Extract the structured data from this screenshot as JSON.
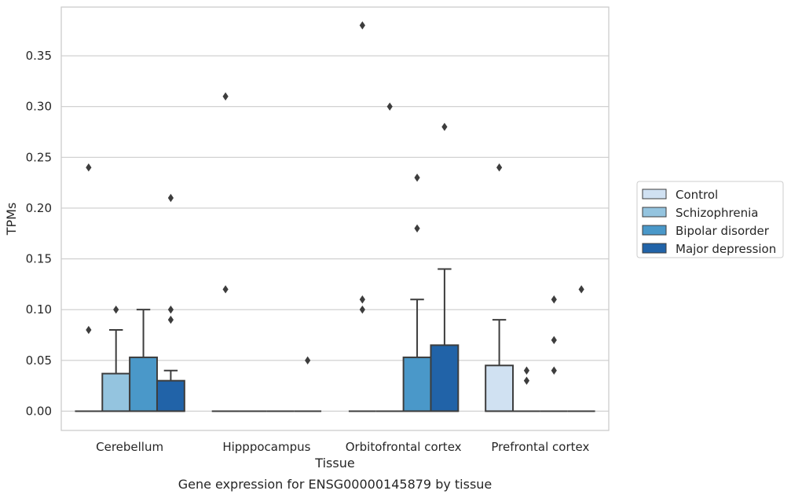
{
  "chart_data": {
    "type": "boxplot",
    "xlabel": "Tissue",
    "ylabel": "TPMs",
    "caption": "Gene expression for ENSG00000145879 by tissue",
    "ylim": [
      -0.019,
      0.398
    ],
    "yticks": [
      0.0,
      0.05,
      0.1,
      0.15,
      0.2,
      0.25,
      0.3,
      0.35
    ],
    "ytick_labels": [
      "0.00",
      "0.05",
      "0.10",
      "0.15",
      "0.20",
      "0.25",
      "0.30",
      "0.35"
    ],
    "grid": "horizontal",
    "legend_placement": "right",
    "categories": [
      "Cerebellum",
      "Hipppocampus",
      "Orbitofrontal cortex",
      "Prefrontal cortex"
    ],
    "series": [
      {
        "name": "Control",
        "color": "#d0e1f2",
        "boxes": [
          {
            "q1": 0,
            "median": 0,
            "q3": 0,
            "whisker_low": 0,
            "whisker_high": 0,
            "outliers": [
              0.08,
              0.24
            ]
          },
          {
            "q1": 0,
            "median": 0,
            "q3": 0,
            "whisker_low": 0,
            "whisker_high": 0,
            "outliers": [
              0.12,
              0.31
            ]
          },
          {
            "q1": 0,
            "median": 0,
            "q3": 0,
            "whisker_low": 0,
            "whisker_high": 0,
            "outliers": [
              0.1,
              0.11,
              0.38
            ]
          },
          {
            "q1": 0,
            "median": 0,
            "q3": 0.045,
            "whisker_low": 0,
            "whisker_high": 0.09,
            "outliers": [
              0.24
            ]
          }
        ]
      },
      {
        "name": "Schizophrenia",
        "color": "#94c4df",
        "boxes": [
          {
            "q1": 0,
            "median": 0,
            "q3": 0.037,
            "whisker_low": 0,
            "whisker_high": 0.08,
            "outliers": [
              0.1
            ]
          },
          {
            "q1": 0,
            "median": 0,
            "q3": 0,
            "whisker_low": 0,
            "whisker_high": 0,
            "outliers": []
          },
          {
            "q1": 0,
            "median": 0,
            "q3": 0,
            "whisker_low": 0,
            "whisker_high": 0,
            "outliers": [
              0.3
            ]
          },
          {
            "q1": 0,
            "median": 0,
            "q3": 0,
            "whisker_low": 0,
            "whisker_high": 0,
            "outliers": [
              0.03,
              0.04
            ]
          }
        ]
      },
      {
        "name": "Bipolar disorder",
        "color": "#4a98c9",
        "boxes": [
          {
            "q1": 0,
            "median": 0,
            "q3": 0.053,
            "whisker_low": 0,
            "whisker_high": 0.1,
            "outliers": []
          },
          {
            "q1": 0,
            "median": 0,
            "q3": 0,
            "whisker_low": 0,
            "whisker_high": 0,
            "outliers": []
          },
          {
            "q1": 0,
            "median": 0,
            "q3": 0.053,
            "whisker_low": 0,
            "whisker_high": 0.11,
            "outliers": [
              0.18,
              0.23
            ]
          },
          {
            "q1": 0,
            "median": 0,
            "q3": 0,
            "whisker_low": 0,
            "whisker_high": 0,
            "outliers": [
              0.04,
              0.07,
              0.11
            ]
          }
        ]
      },
      {
        "name": "Major depression",
        "color": "#2163a8",
        "boxes": [
          {
            "q1": 0,
            "median": 0,
            "q3": 0.03,
            "whisker_low": 0,
            "whisker_high": 0.04,
            "outliers": [
              0.09,
              0.1,
              0.21
            ]
          },
          {
            "q1": 0,
            "median": 0,
            "q3": 0,
            "whisker_low": 0,
            "whisker_high": 0,
            "outliers": [
              0.05
            ]
          },
          {
            "q1": 0,
            "median": 0,
            "q3": 0.065,
            "whisker_low": 0,
            "whisker_high": 0.14,
            "outliers": [
              0.28
            ]
          },
          {
            "q1": 0,
            "median": 0,
            "q3": 0,
            "whisker_low": 0,
            "whisker_high": 0,
            "outliers": [
              0.12
            ]
          }
        ]
      }
    ]
  }
}
